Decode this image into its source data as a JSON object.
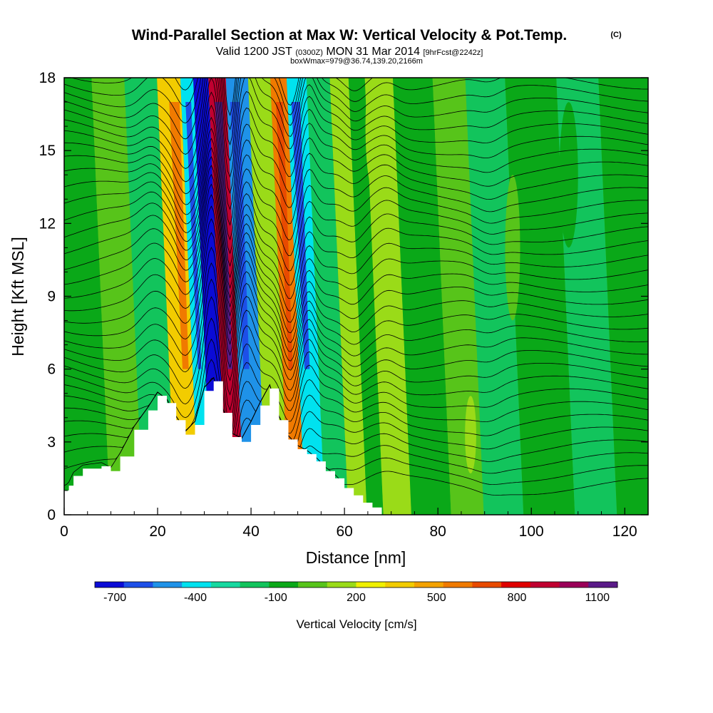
{
  "title": {
    "main": "Wind-Parallel Section at Max W: Vertical Velocity & Pot.Temp.",
    "copyright": "(C)",
    "valid_prefix": "Valid 1200 JST",
    "valid_zulu": "(0300Z)",
    "valid_date": "MON 31 Mar 2014",
    "forecast": "[9hrFcst@2242z]",
    "box": "boxWmax=979@36.74,139.20,2166m"
  },
  "chart_data": {
    "type": "heatmap",
    "xlabel": "Distance [nm]",
    "ylabel": "Height [Kft MSL]",
    "xlim": [
      0,
      125
    ],
    "ylim": [
      0,
      18
    ],
    "xticks": [
      "0",
      "20",
      "40",
      "60",
      "80",
      "100",
      "120"
    ],
    "yticks": [
      "0",
      "3",
      "6",
      "9",
      "12",
      "15",
      "18"
    ],
    "field": "Vertical Velocity [cm/s]",
    "contours": "Potential temperature isentropes",
    "updraft_max_cm_s": 979,
    "terrain_profile": {
      "x": [
        0,
        1,
        2,
        4,
        8,
        10,
        12,
        15,
        18,
        20,
        22,
        24,
        26,
        28,
        30,
        32,
        34,
        36,
        38,
        40,
        42,
        44,
        46,
        48,
        50,
        52,
        54,
        56,
        58,
        60,
        62,
        64,
        66,
        68
      ],
      "y": [
        1.0,
        1.2,
        1.6,
        1.9,
        2.0,
        1.8,
        2.4,
        3.5,
        4.3,
        4.9,
        4.6,
        3.9,
        3.3,
        3.7,
        5.1,
        5.5,
        4.2,
        3.2,
        3.0,
        3.7,
        4.5,
        5.2,
        3.9,
        3.1,
        2.7,
        2.5,
        2.2,
        1.8,
        1.5,
        1.1,
        0.8,
        0.5,
        0.3,
        0.3
      ]
    },
    "bands": [
      {
        "x": 5,
        "w_cm_s": -30
      },
      {
        "x": 12,
        "w_cm_s": 90
      },
      {
        "x": 19,
        "w_cm_s": -180
      },
      {
        "x": 26,
        "w_cm_s": 380
      },
      {
        "x": 29,
        "w_cm_s": -450
      },
      {
        "x": 31.5,
        "w_cm_s": -720
      },
      {
        "x": 35.5,
        "w_cm_s": 950
      },
      {
        "x": 39,
        "w_cm_s": -480
      },
      {
        "x": 45,
        "w_cm_s": 150
      },
      {
        "x": 48.5,
        "w_cm_s": 580
      },
      {
        "x": 52,
        "w_cm_s": -420
      },
      {
        "x": 57,
        "w_cm_s": -160
      },
      {
        "x": 62,
        "w_cm_s": 120
      },
      {
        "x": 65,
        "w_cm_s": -120
      },
      {
        "x": 69,
        "w_cm_s": 180
      },
      {
        "x": 77,
        "w_cm_s": -120
      },
      {
        "x": 86,
        "w_cm_s": 70
      },
      {
        "x": 91,
        "w_cm_s": -130
      },
      {
        "x": 103,
        "w_cm_s": -80
      },
      {
        "x": 113,
        "w_cm_s": -130
      },
      {
        "x": 121,
        "w_cm_s": -60
      }
    ]
  },
  "colorbar": {
    "title": "Vertical Velocity [cm/s]",
    "labels": [
      "-700",
      "-400",
      "-100",
      "200",
      "500",
      "800",
      "1100"
    ],
    "label_values": [
      -700,
      -400,
      -100,
      200,
      500,
      800,
      1100
    ],
    "min": -775,
    "max": 1175,
    "colors": [
      "#0b0bd6",
      "#1d4fe8",
      "#1f92e8",
      "#00e2ef",
      "#16d9a0",
      "#12c45c",
      "#0aa818",
      "#57c41a",
      "#9adb18",
      "#f0f000",
      "#f2cc00",
      "#f4a200",
      "#f07a00",
      "#e84a00",
      "#e00000",
      "#c00030",
      "#9a0058",
      "#5a1a88"
    ]
  }
}
